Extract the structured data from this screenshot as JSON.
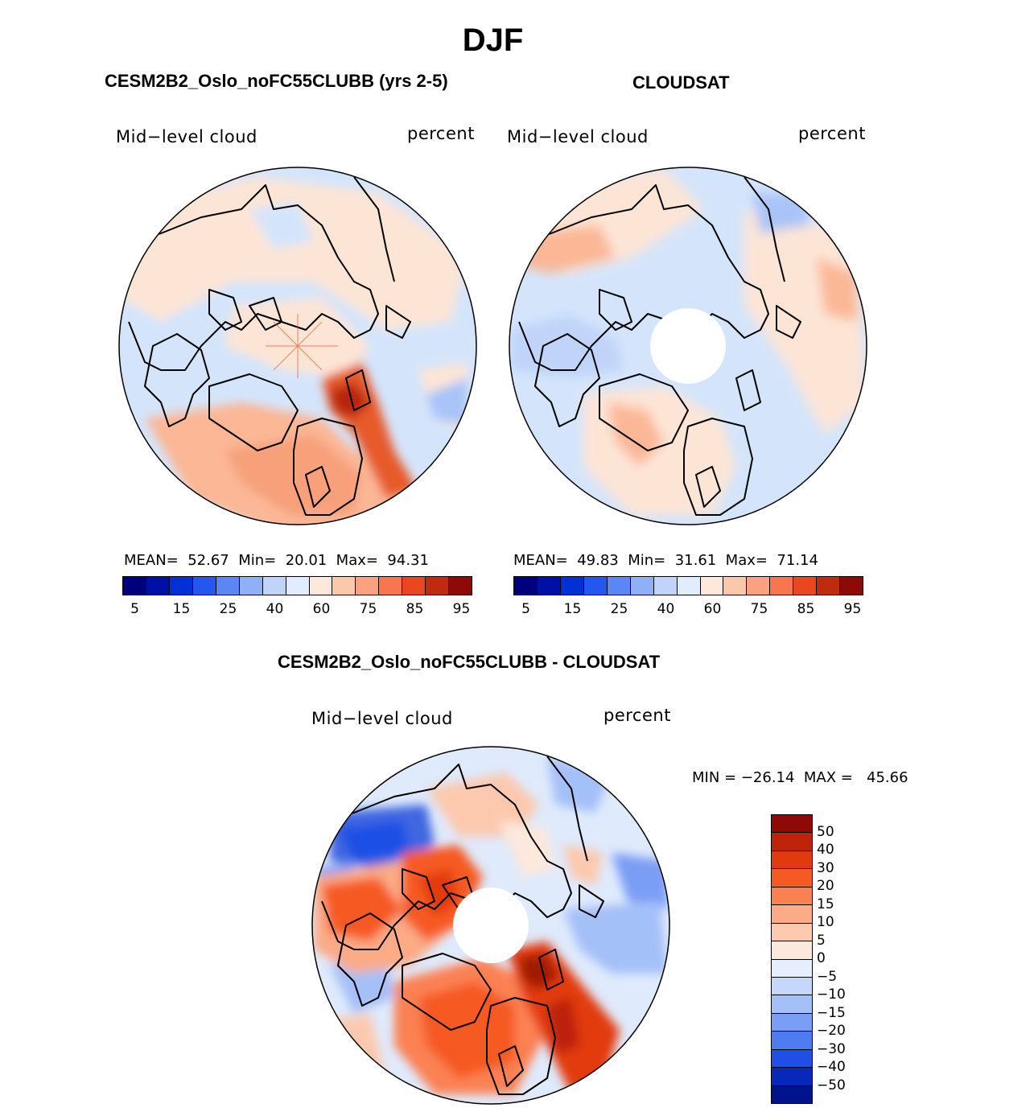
{
  "title": "DJF",
  "panels": [
    {
      "title": "CESM2B2_Oslo_noFC55CLUBB (yrs 2-5)",
      "variable": "Mid−level cloud",
      "units": "percent",
      "stats": {
        "mean_label": "MEAN=",
        "mean": "52.67",
        "min_label": "Min=",
        "min": "20.01",
        "max_label": "Max=",
        "max": "94.31"
      }
    },
    {
      "title": "CLOUDSAT",
      "variable": "Mid−level cloud",
      "units": "percent",
      "stats": {
        "mean_label": "MEAN=",
        "mean": "49.83",
        "min_label": "Min=",
        "min": "31.61",
        "max_label": "Max=",
        "max": "71.14"
      }
    },
    {
      "title": "CESM2B2_Oslo_noFC55CLUBB - CLOUDSAT",
      "variable": "Mid−level cloud",
      "units": "percent",
      "minmax": "MIN = −26.14  MAX =   45.66"
    }
  ],
  "abs_colorbar": {
    "colors": [
      "#00007f",
      "#0010a6",
      "#0030d6",
      "#2456f0",
      "#5b86f5",
      "#8fb0f7",
      "#c0d4fa",
      "#e1ecfd",
      "#fde9dc",
      "#fcc8ac",
      "#fba181",
      "#f97550",
      "#ea4620",
      "#c02a0e",
      "#8f0a06"
    ],
    "labels": [
      "5",
      "15",
      "25",
      "40",
      "60",
      "75",
      "85",
      "95"
    ]
  },
  "diff_colorbar": {
    "colors": [
      "#8f0a06",
      "#bc2308",
      "#e23a0d",
      "#f65a24",
      "#fb8153",
      "#fbab86",
      "#fcc9ae",
      "#fde8dc",
      "#e6effd",
      "#c5d8fb",
      "#a4c0f8",
      "#7a9df5",
      "#4d7cf1",
      "#1f4fe6",
      "#0828bb",
      "#00128a"
    ],
    "labels": [
      "50",
      "40",
      "30",
      "20",
      "15",
      "10",
      "5",
      "0",
      "−5",
      "−10",
      "−15",
      "−20",
      "−30",
      "−40",
      "−50"
    ]
  },
  "map_colors": {
    "ocean_light_blue": "#d4e5fb",
    "light_peach": "#fde5d6",
    "mid_orange": "#f7a07a",
    "strong_red": "#d63a14",
    "dark_red": "#a01a06",
    "mid_blue": "#8fb0f7",
    "strong_blue": "#3f66e0"
  }
}
